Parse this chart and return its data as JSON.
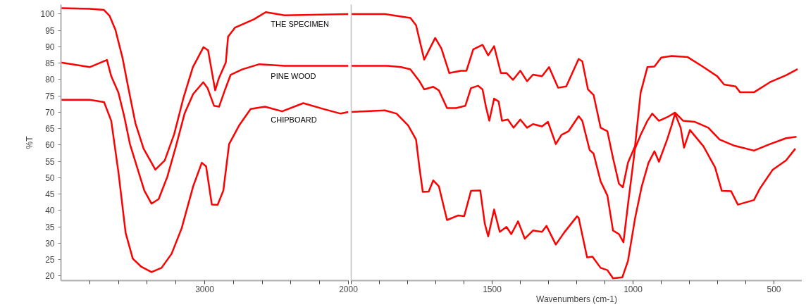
{
  "chart_data": [
    {
      "type": "line",
      "ylabel": "%T",
      "xlim": [
        4000,
        2000
      ],
      "ylim": [
        18.6,
        102.9
      ],
      "xticks": [
        {
          "value": 3800,
          "label": null
        },
        {
          "value": 3600,
          "label": null
        },
        {
          "value": 3400,
          "label": null
        },
        {
          "value": 3200,
          "label": null
        },
        3000,
        {
          "value": 2800,
          "label": null
        },
        {
          "value": 2600,
          "label": null
        },
        {
          "value": 2400,
          "label": null
        },
        {
          "value": 2200,
          "label": null
        },
        2000
      ],
      "yticks": [
        20,
        25,
        30,
        35,
        40,
        45,
        50,
        55,
        60,
        65,
        70,
        75,
        80,
        85,
        90,
        95,
        100
      ],
      "series": [
        {
          "name": "THE SPECIMEN",
          "color": "#ff0000",
          "x": [
            4000,
            3800,
            3702,
            3662,
            3621,
            3572,
            3531,
            3482,
            3425,
            3343,
            3278,
            3213,
            3147,
            3082,
            3008,
            2976,
            2927,
            2902,
            2853,
            2837,
            2788,
            2657,
            2575,
            2444,
            2000
          ],
          "values": [
            101.8,
            101.6,
            101.3,
            99.5,
            95.2,
            86.7,
            77.4,
            66.7,
            58.9,
            52.5,
            55.3,
            63.2,
            74.5,
            83.8,
            89.9,
            88.9,
            76.7,
            80.3,
            85.2,
            93.1,
            95.9,
            98.4,
            100.6,
            99.6,
            100.0
          ]
        },
        {
          "name": "PINE WOOD",
          "color": "#ff0000",
          "x": [
            4000,
            3800,
            3680,
            3650,
            3600,
            3560,
            3520,
            3470,
            3420,
            3370,
            3320,
            3260,
            3200,
            3140,
            3080,
            3010,
            2980,
            2935,
            2900,
            2860,
            2820,
            2740,
            2620,
            2444,
            2000
          ],
          "values": [
            85.2,
            83.8,
            86.0,
            81.0,
            76.0,
            68.8,
            60.3,
            53.2,
            46.1,
            42.1,
            43.5,
            50.3,
            59.6,
            69.6,
            75.6,
            79.2,
            77.4,
            72.0,
            71.7,
            76.7,
            81.4,
            83.1,
            84.7,
            84.2,
            84.2
          ]
        },
        {
          "name": "CHIPBOARD",
          "color": "#ff0000",
          "x": [
            4000,
            3800,
            3700,
            3650,
            3600,
            3550,
            3500,
            3440,
            3370,
            3300,
            3230,
            3160,
            3080,
            3020,
            2990,
            2950,
            2910,
            2870,
            2830,
            2760,
            2680,
            2580,
            2461,
            2314,
            2172,
            2054,
            2000
          ],
          "values": [
            73.8,
            73.8,
            73.1,
            67.4,
            51.7,
            33.2,
            25.3,
            22.8,
            21.2,
            22.5,
            26.8,
            34.6,
            47.4,
            54.6,
            53.5,
            41.8,
            41.7,
            46.1,
            60.3,
            66.0,
            71.0,
            71.7,
            70.3,
            72.8,
            71.0,
            69.6,
            70.1
          ]
        }
      ]
    },
    {
      "type": "line",
      "xlabel": "Wavenumbers (cm-1)",
      "xlim": [
        2000,
        400
      ],
      "ylim": [
        18.6,
        102.9
      ],
      "tick_labels": "x",
      "xticks": [
        {
          "value": 2000,
          "label": null
        },
        {
          "value": 1900,
          "label": null
        },
        {
          "value": 1800,
          "label": null
        },
        {
          "value": 1700,
          "label": null
        },
        {
          "value": 1600,
          "label": null
        },
        1500,
        {
          "value": 1400,
          "label": null
        },
        {
          "value": 1300,
          "label": null
        },
        {
          "value": 1200,
          "label": null
        },
        {
          "value": 1100,
          "label": null
        },
        1000,
        {
          "value": 900,
          "label": null
        },
        {
          "value": 800,
          "label": null
        },
        {
          "value": 700,
          "label": null
        },
        {
          "value": 600,
          "label": null
        },
        500
      ],
      "yticks": [
        20,
        25,
        30,
        35,
        40,
        45,
        50,
        55,
        60,
        65,
        70,
        75,
        80,
        85,
        90,
        95,
        100
      ],
      "series": [
        {
          "color": "#ff0000",
          "x": [
            2000,
            1880,
            1790,
            1770,
            1741,
            1702,
            1680,
            1652,
            1611,
            1591,
            1567,
            1534,
            1514,
            1493,
            1469,
            1449,
            1426,
            1400,
            1376,
            1355,
            1323,
            1298,
            1266,
            1237,
            1193,
            1180,
            1160,
            1140,
            1115,
            1091,
            1071,
            1050,
            1036,
            1018,
            993,
            973,
            949,
            924,
            900,
            863,
            807,
            750,
            701,
            677,
            636,
            620,
            571,
            514,
            457,
            416
          ],
          "values": [
            100.0,
            100.0,
            98.8,
            96.6,
            86.1,
            92.7,
            89.5,
            82.0,
            82.7,
            82.7,
            89.2,
            90.6,
            87.4,
            90.2,
            82.0,
            82.0,
            79.9,
            82.7,
            79.5,
            81.5,
            81.0,
            83.8,
            77.5,
            77.9,
            86.3,
            85.6,
            77.0,
            75.3,
            65.3,
            64.2,
            56.0,
            48.2,
            47.1,
            54.6,
            59.6,
            76.0,
            83.8,
            84.0,
            86.7,
            87.2,
            86.9,
            83.8,
            81.0,
            78.5,
            77.9,
            76.1,
            76.1,
            79.2,
            81.3,
            83.2
          ]
        },
        {
          "color": "#ff0000",
          "x": [
            2000,
            1870,
            1823,
            1790,
            1758,
            1741,
            1709,
            1689,
            1660,
            1628,
            1595,
            1575,
            1550,
            1534,
            1522,
            1510,
            1493,
            1477,
            1465,
            1444,
            1424,
            1400,
            1376,
            1355,
            1323,
            1302,
            1274,
            1254,
            1229,
            1193,
            1180,
            1154,
            1140,
            1115,
            1091,
            1071,
            1050,
            1034,
            1018,
            993,
            973,
            949,
            932,
            908,
            879,
            851,
            822,
            782,
            733,
            693,
            644,
            571,
            514,
            457,
            420
          ],
          "values": [
            84.2,
            84.2,
            83.8,
            83.1,
            79.5,
            77.0,
            77.8,
            76.7,
            71.3,
            71.3,
            72.0,
            77.4,
            78.1,
            77.0,
            71.7,
            67.4,
            74.2,
            73.3,
            67.4,
            67.8,
            65.3,
            67.8,
            65.3,
            66.4,
            65.7,
            67.1,
            60.3,
            63.1,
            64.2,
            68.8,
            67.4,
            58.5,
            57.4,
            48.9,
            44.6,
            33.9,
            32.8,
            30.3,
            41.8,
            58.9,
            63.1,
            67.4,
            69.6,
            67.4,
            68.5,
            69.9,
            67.4,
            67.1,
            65.3,
            61.7,
            59.9,
            58.3,
            60.3,
            62.1,
            62.5
          ]
        },
        {
          "color": "#ff0000",
          "x": [
            2000,
            1880,
            1839,
            1798,
            1770,
            1758,
            1746,
            1725,
            1709,
            1689,
            1660,
            1620,
            1599,
            1575,
            1542,
            1526,
            1514,
            1493,
            1473,
            1449,
            1432,
            1408,
            1384,
            1355,
            1323,
            1307,
            1274,
            1245,
            1199,
            1193,
            1163,
            1144,
            1115,
            1091,
            1071,
            1038,
            1018,
            993,
            969,
            945,
            924,
            908,
            879,
            863,
            851,
            831,
            819,
            798,
            750,
            709,
            685,
            652,
            628,
            571,
            550,
            505,
            457,
            424
          ],
          "values": [
            70.1,
            70.6,
            69.6,
            66.0,
            61.7,
            53.2,
            45.7,
            45.8,
            49.2,
            47.4,
            37.1,
            38.5,
            38.3,
            46.0,
            46.1,
            36.0,
            32.1,
            40.3,
            33.5,
            35.0,
            32.8,
            36.7,
            31.4,
            33.9,
            33.5,
            35.3,
            29.6,
            33.2,
            38.2,
            37.8,
            25.7,
            25.9,
            22.5,
            21.8,
            19.3,
            19.6,
            24.6,
            37.5,
            47.4,
            54.6,
            58.1,
            54.9,
            61.7,
            66.0,
            69.6,
            65.3,
            59.2,
            64.6,
            59.6,
            53.2,
            46.0,
            45.9,
            41.8,
            43.2,
            46.7,
            52.4,
            55.3,
            58.9
          ]
        }
      ]
    }
  ]
}
